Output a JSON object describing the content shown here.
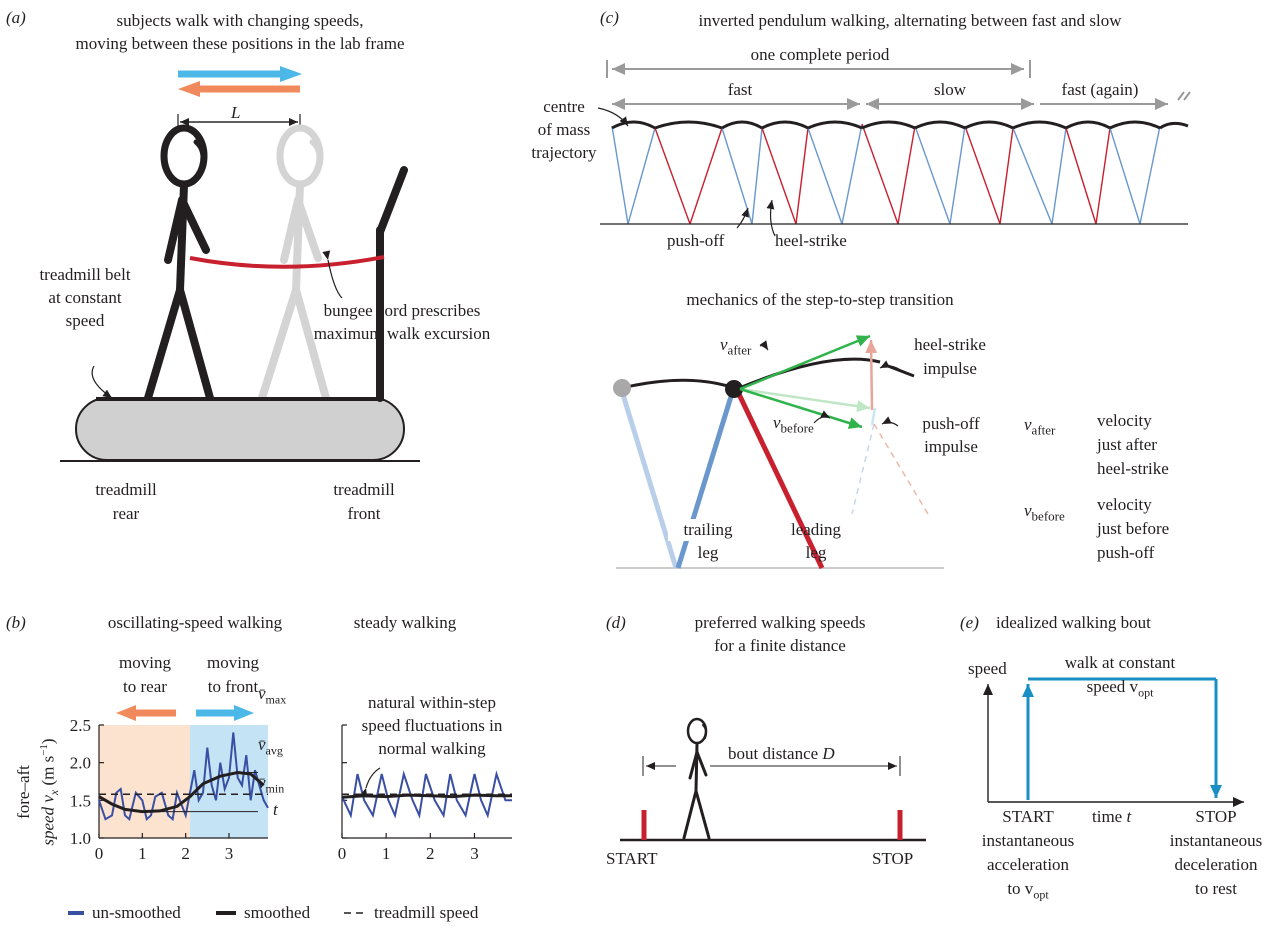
{
  "colors": {
    "red": "#c8202f",
    "blue": "#3a4fa3",
    "lightblue": "#4cb8e8",
    "orange": "#f08a5d",
    "green": "#2fb34a",
    "trailing": "#6a98cc",
    "peach": "#fbe3cf",
    "sky": "#c4e4f6"
  },
  "panel_a": {
    "label": "(a)",
    "title_line1": "subjects walk with changing speeds,",
    "title_line2": "moving between these positions in the lab frame",
    "L_label": "L",
    "belt_line1": "treadmill belt",
    "belt_line2": "at constant",
    "belt_line3": "speed",
    "bungee_line1": "bungee cord prescribes",
    "bungee_line2": "maximum walk excursion",
    "rear_line1": "treadmill",
    "rear_line2": "rear",
    "front_line1": "treadmill",
    "front_line2": "front"
  },
  "panel_b": {
    "label": "(b)",
    "title_left": "oscillating-speed walking",
    "title_right": "steady walking",
    "rear_line1": "moving",
    "rear_line2": "to rear",
    "front_line1": "moving",
    "front_line2": "to front",
    "ylabel_line1": "fore–aft",
    "ylabel_line2": "speed v",
    "ylabel_sub": "x",
    "ylabel_units": "(m s",
    "ylabel_exp": "−1",
    "ylabel_close": ")",
    "t_label": "t",
    "vmax": "v̄",
    "vmax_sub": "max",
    "vavg": "v̄",
    "vavg_sub": "avg",
    "vmin": "v̄",
    "vmin_sub": "min",
    "fluct_line1": "natural within-step",
    "fluct_line2": "speed fluctuations in",
    "fluct_line3": "normal walking",
    "legend_unsmoothed": "un-smoothed",
    "legend_smoothed": "smoothed",
    "legend_treadmill": "treadmill speed"
  },
  "chart_data": [
    {
      "type": "line",
      "title": "oscillating-speed walking",
      "xlabel": "t",
      "ylabel": "fore–aft speed v_x (m s−1)",
      "xlim": [
        0,
        4
      ],
      "ylim": [
        1.0,
        2.5
      ],
      "xticks": [
        "0",
        "1",
        "2",
        "3"
      ],
      "yticks": [
        "1.0",
        "1.5",
        "2.0",
        "2.5"
      ],
      "series": [
        {
          "name": "un-smoothed",
          "x": [
            0,
            0.15,
            0.3,
            0.4,
            0.5,
            0.6,
            0.7,
            0.85,
            1.0,
            1.1,
            1.2,
            1.3,
            1.45,
            1.6,
            1.7,
            1.8,
            1.9,
            2.0,
            2.1,
            2.2,
            2.3,
            2.4,
            2.5,
            2.6,
            2.7,
            2.8,
            2.9,
            3.0,
            3.1,
            3.2,
            3.3,
            3.4,
            3.5,
            3.6,
            3.7,
            3.8,
            3.9
          ],
          "values": [
            1.5,
            1.25,
            1.3,
            1.6,
            1.65,
            1.3,
            1.25,
            1.6,
            1.5,
            1.25,
            1.3,
            1.55,
            1.6,
            1.3,
            1.25,
            1.6,
            1.45,
            1.3,
            1.6,
            1.9,
            1.5,
            1.6,
            2.2,
            1.7,
            1.5,
            2.0,
            1.65,
            1.8,
            2.4,
            1.8,
            1.7,
            2.1,
            1.5,
            1.9,
            1.7,
            1.5,
            1.4
          ]
        },
        {
          "name": "smoothed",
          "x": [
            0,
            0.3,
            0.6,
            1.0,
            1.4,
            1.8,
            2.1,
            2.4,
            2.8,
            3.2,
            3.5,
            3.8
          ],
          "values": [
            1.55,
            1.45,
            1.38,
            1.35,
            1.36,
            1.42,
            1.55,
            1.72,
            1.82,
            1.87,
            1.85,
            1.7
          ]
        },
        {
          "name": "treadmill speed",
          "x": [
            0,
            3.9
          ],
          "values": [
            1.58,
            1.58
          ]
        }
      ]
    },
    {
      "type": "line",
      "title": "steady walking",
      "xlim": [
        0,
        4
      ],
      "ylim": [
        1.0,
        2.5
      ],
      "xticks": [
        "0",
        "1",
        "2",
        "3"
      ],
      "series": [
        {
          "name": "un-smoothed",
          "x": [
            0,
            0.2,
            0.35,
            0.5,
            0.7,
            0.9,
            1.05,
            1.2,
            1.4,
            1.6,
            1.75,
            1.9,
            2.1,
            2.3,
            2.45,
            2.6,
            2.8,
            3.0,
            3.15,
            3.3,
            3.5,
            3.7,
            3.85
          ],
          "values": [
            1.55,
            1.3,
            1.85,
            1.5,
            1.3,
            1.85,
            1.5,
            1.3,
            1.85,
            1.5,
            1.3,
            1.85,
            1.5,
            1.3,
            1.85,
            1.5,
            1.3,
            1.85,
            1.5,
            1.3,
            1.85,
            1.5,
            1.5
          ]
        },
        {
          "name": "smoothed",
          "x": [
            0,
            0.5,
            1.0,
            1.5,
            2.0,
            2.5,
            3.0,
            3.5,
            3.85
          ],
          "values": [
            1.54,
            1.56,
            1.55,
            1.57,
            1.56,
            1.55,
            1.57,
            1.56,
            1.56
          ]
        },
        {
          "name": "treadmill speed",
          "x": [
            0,
            3.85
          ],
          "values": [
            1.58,
            1.58
          ]
        }
      ]
    }
  ],
  "panel_c": {
    "label": "(c)",
    "title": "inverted pendulum walking, alternating between fast and slow",
    "period": "one complete period",
    "fast": "fast",
    "slow": "slow",
    "fast_again": "fast (again)",
    "com_line1": "centre",
    "com_line2": "of mass",
    "com_line3": "trajectory",
    "pushoff": "push-off",
    "heelstrike": "heel-strike",
    "mech_title": "mechanics of the step-to-step transition",
    "v_after": "v",
    "v_after_sub": "after",
    "v_before": "v",
    "v_before_sub": "before",
    "hs_impulse_line1": "heel-strike",
    "hs_impulse_line2": "impulse",
    "po_impulse_line1": "push-off",
    "po_impulse_line2": "impulse",
    "def_after_line1": "velocity",
    "def_after_line2": "just after",
    "def_after_line3": "heel-strike",
    "def_before_line1": "velocity",
    "def_before_line2": "just before",
    "def_before_line3": "push-off",
    "trailing_line1": "trailing",
    "trailing_line2": "leg",
    "leading_line1": "leading",
    "leading_line2": "leg"
  },
  "panel_d": {
    "label": "(d)",
    "title_line1": "preferred walking speeds",
    "title_line2": "for a finite distance",
    "bout": "bout distance",
    "bout_var": "D",
    "start": "START",
    "stop": "STOP"
  },
  "panel_e": {
    "label": "(e)",
    "title": "idealized walking bout",
    "speed": "speed",
    "walk_line1": "walk at constant",
    "walk_line2": "speed v",
    "walk_sub": "opt",
    "time": "time",
    "time_var": "t",
    "start": "START",
    "stop": "STOP",
    "start_line1": "instantaneous",
    "start_line2": "acceleration",
    "start_line3": "to v",
    "start_sub": "opt",
    "stop_line1": "instantaneous",
    "stop_line2": "deceleration",
    "stop_line3": "to rest"
  }
}
